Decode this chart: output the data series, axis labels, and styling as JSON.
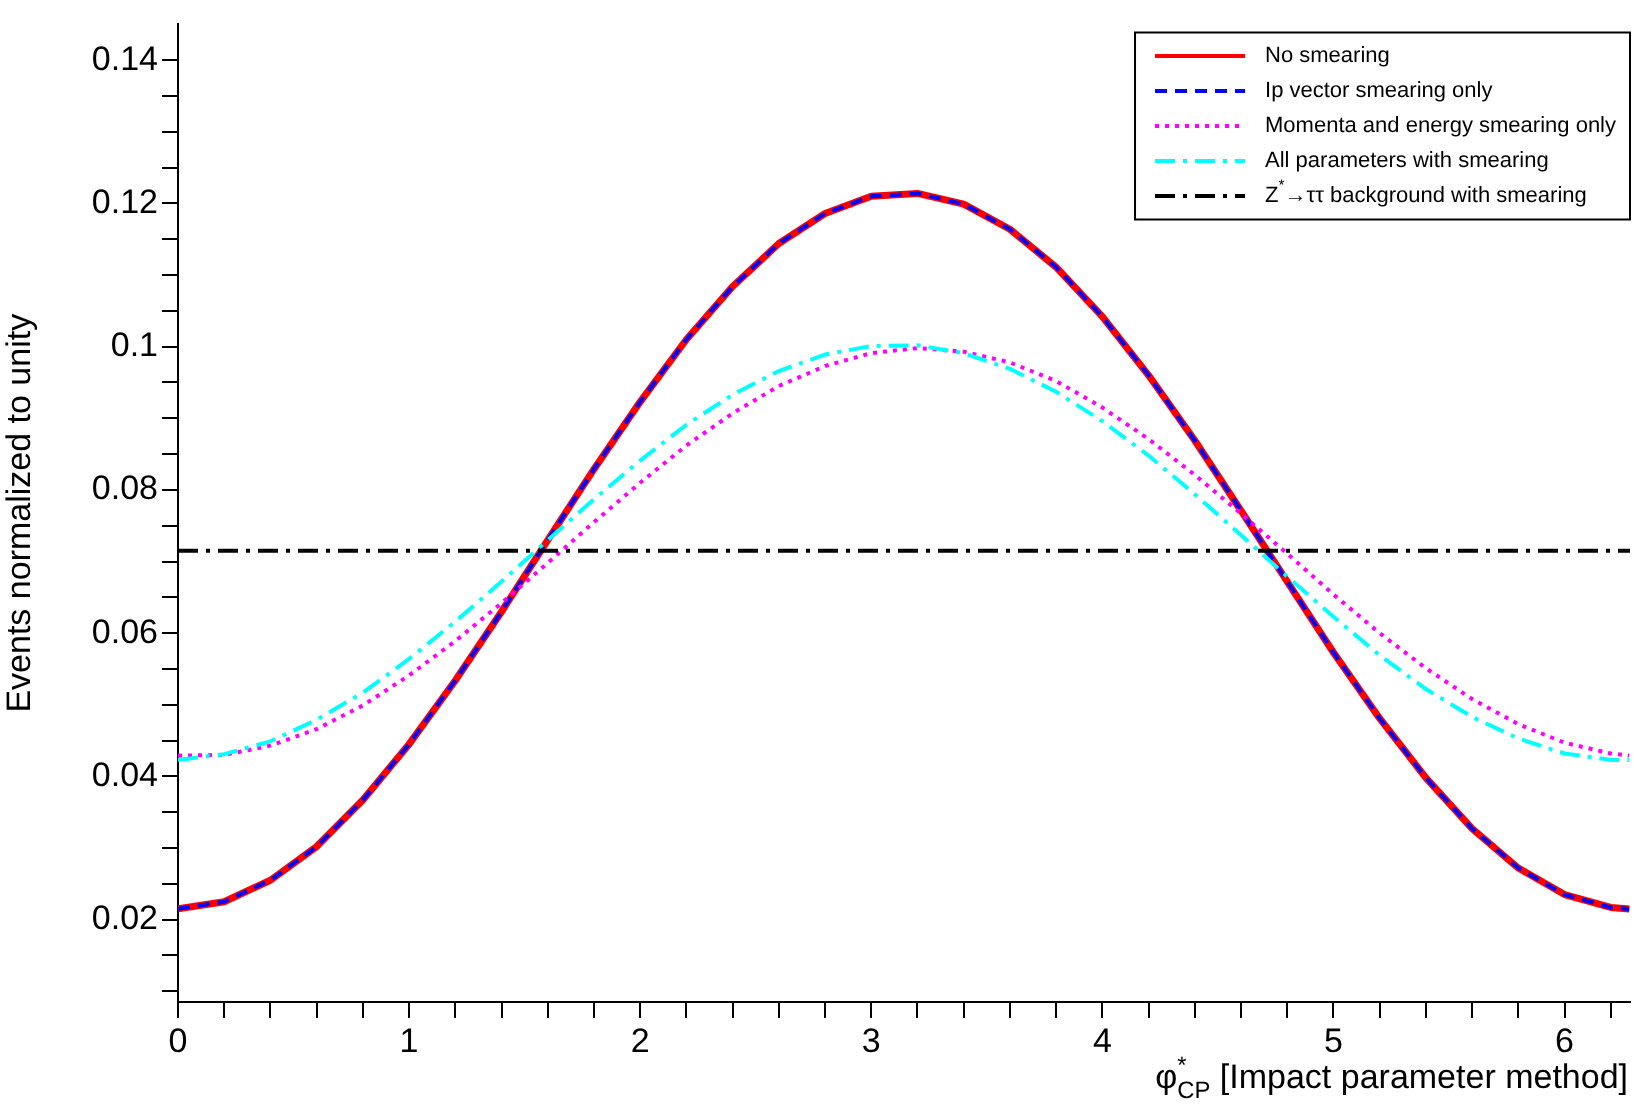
{
  "chart_data": {
    "type": "line",
    "ylabel": "Events normalized to unity",
    "xlabel": "φ$^{*}$$_{CP}$ [Impact parameter method]",
    "xlim": [
      0,
      6.2832
    ],
    "ylim": [
      0.0085,
      0.145
    ],
    "xticks": [
      0,
      {
        "value": 0.2,
        "label": null
      },
      {
        "value": 0.4,
        "label": null
      },
      {
        "value": 0.6,
        "label": null
      },
      {
        "value": 0.8,
        "label": null
      },
      1,
      {
        "value": 1.2,
        "label": null
      },
      {
        "value": 1.4,
        "label": null
      },
      {
        "value": 1.6,
        "label": null
      },
      {
        "value": 1.8,
        "label": null
      },
      2,
      {
        "value": 2.2,
        "label": null
      },
      {
        "value": 2.4,
        "label": null
      },
      {
        "value": 2.6,
        "label": null
      },
      {
        "value": 2.8,
        "label": null
      },
      3,
      {
        "value": 3.2,
        "label": null
      },
      {
        "value": 3.4,
        "label": null
      },
      {
        "value": 3.6,
        "label": null
      },
      {
        "value": 3.8,
        "label": null
      },
      4,
      {
        "value": 4.2,
        "label": null
      },
      {
        "value": 4.4,
        "label": null
      },
      {
        "value": 4.6,
        "label": null
      },
      {
        "value": 4.8,
        "label": null
      },
      5,
      {
        "value": 5.2,
        "label": null
      },
      {
        "value": 5.4,
        "label": null
      },
      {
        "value": 5.6,
        "label": null
      },
      {
        "value": 5.8,
        "label": null
      },
      6,
      {
        "value": 6.2,
        "label": null
      }
    ],
    "yticks": [
      {
        "value": 0.01,
        "label": null
      },
      {
        "value": 0.015,
        "label": null
      },
      0.02,
      {
        "value": 0.025,
        "label": null
      },
      {
        "value": 0.03,
        "label": null
      },
      {
        "value": 0.035,
        "label": null
      },
      0.04,
      {
        "value": 0.045,
        "label": null
      },
      {
        "value": 0.05,
        "label": null
      },
      {
        "value": 0.055,
        "label": null
      },
      0.06,
      {
        "value": 0.065,
        "label": null
      },
      {
        "value": 0.07,
        "label": null
      },
      {
        "value": 0.075,
        "label": null
      },
      0.08,
      {
        "value": 0.085,
        "label": null
      },
      {
        "value": 0.09,
        "label": null
      },
      {
        "value": 0.095,
        "label": null
      },
      0.1,
      {
        "value": 0.105,
        "label": null
      },
      {
        "value": 0.11,
        "label": null
      },
      {
        "value": 0.115,
        "label": null
      },
      0.12,
      {
        "value": 0.125,
        "label": null
      },
      {
        "value": 0.13,
        "label": null
      },
      {
        "value": 0.135,
        "label": null
      },
      0.14
    ],
    "x": [
      0,
      0.2,
      0.4,
      0.6,
      0.8,
      1.0,
      1.2,
      1.4,
      1.6,
      1.8,
      2.0,
      2.2,
      2.4,
      2.6,
      2.8,
      3.0,
      3.2,
      3.4,
      3.6,
      3.8,
      4.0,
      4.2,
      4.4,
      4.6,
      4.8,
      5.0,
      5.2,
      5.4,
      5.6,
      5.8,
      6.0,
      6.2,
      6.28
    ],
    "legend": "top right",
    "marker": "none",
    "series": [
      {
        "name": "No smearing",
        "color": "#ff0000",
        "line_style": "solid",
        "values": [
          0.0215,
          0.0225,
          0.0255,
          0.0302,
          0.0367,
          0.0445,
          0.0534,
          0.063,
          0.073,
          0.0829,
          0.0923,
          0.101,
          0.1084,
          0.1144,
          0.1186,
          0.121,
          0.1214,
          0.1199,
          0.1164,
          0.1111,
          0.1042,
          0.096,
          0.0869,
          0.0771,
          0.0672,
          0.0573,
          0.0481,
          0.0398,
          0.0327,
          0.0272,
          0.0235,
          0.0217,
          0.0215
        ]
      },
      {
        "name": "Ip vector smearing only",
        "color": "#0000ff",
        "line_style": "dashed",
        "values": [
          0.0215,
          0.0225,
          0.0255,
          0.0302,
          0.0367,
          0.0445,
          0.0534,
          0.063,
          0.073,
          0.0829,
          0.0923,
          0.101,
          0.1084,
          0.1144,
          0.1186,
          0.121,
          0.1214,
          0.1199,
          0.1164,
          0.1111,
          0.1042,
          0.096,
          0.0869,
          0.0771,
          0.0672,
          0.0573,
          0.0481,
          0.0398,
          0.0327,
          0.0272,
          0.0235,
          0.0217,
          0.0215
        ]
      },
      {
        "name": "Momenta and energy smearing only",
        "color": "#ff00ff",
        "line_style": "dotted",
        "values": [
          0.0429,
          0.043,
          0.0443,
          0.0466,
          0.0499,
          0.0541,
          0.0589,
          0.0642,
          0.0698,
          0.0755,
          0.081,
          0.0862,
          0.0907,
          0.0945,
          0.0973,
          0.0991,
          0.0998,
          0.0993,
          0.0978,
          0.0952,
          0.0915,
          0.0871,
          0.0821,
          0.0767,
          0.0711,
          0.0654,
          0.06,
          0.0551,
          0.0508,
          0.0473,
          0.0447,
          0.0432,
          0.0429
        ]
      },
      {
        "name": "All parameters with smearing",
        "color": "#00ffff",
        "line_style": "dashdot",
        "values": [
          0.0423,
          0.0431,
          0.0449,
          0.0479,
          0.0517,
          0.0564,
          0.0616,
          0.0672,
          0.073,
          0.0787,
          0.0841,
          0.0891,
          0.0933,
          0.0966,
          0.0989,
          0.1001,
          0.1002,
          0.0991,
          0.0969,
          0.0937,
          0.0896,
          0.0848,
          0.0794,
          0.0737,
          0.0679,
          0.0623,
          0.0569,
          0.0522,
          0.0483,
          0.0453,
          0.0432,
          0.0423,
          0.0423
        ]
      },
      {
        "name": "Z$^{*}$→ττ background with smearing",
        "color": "#000000",
        "line_style": "dashdot",
        "x": [
          0,
          6.2832
        ],
        "values": [
          0.0715,
          0.0715
        ]
      }
    ]
  }
}
